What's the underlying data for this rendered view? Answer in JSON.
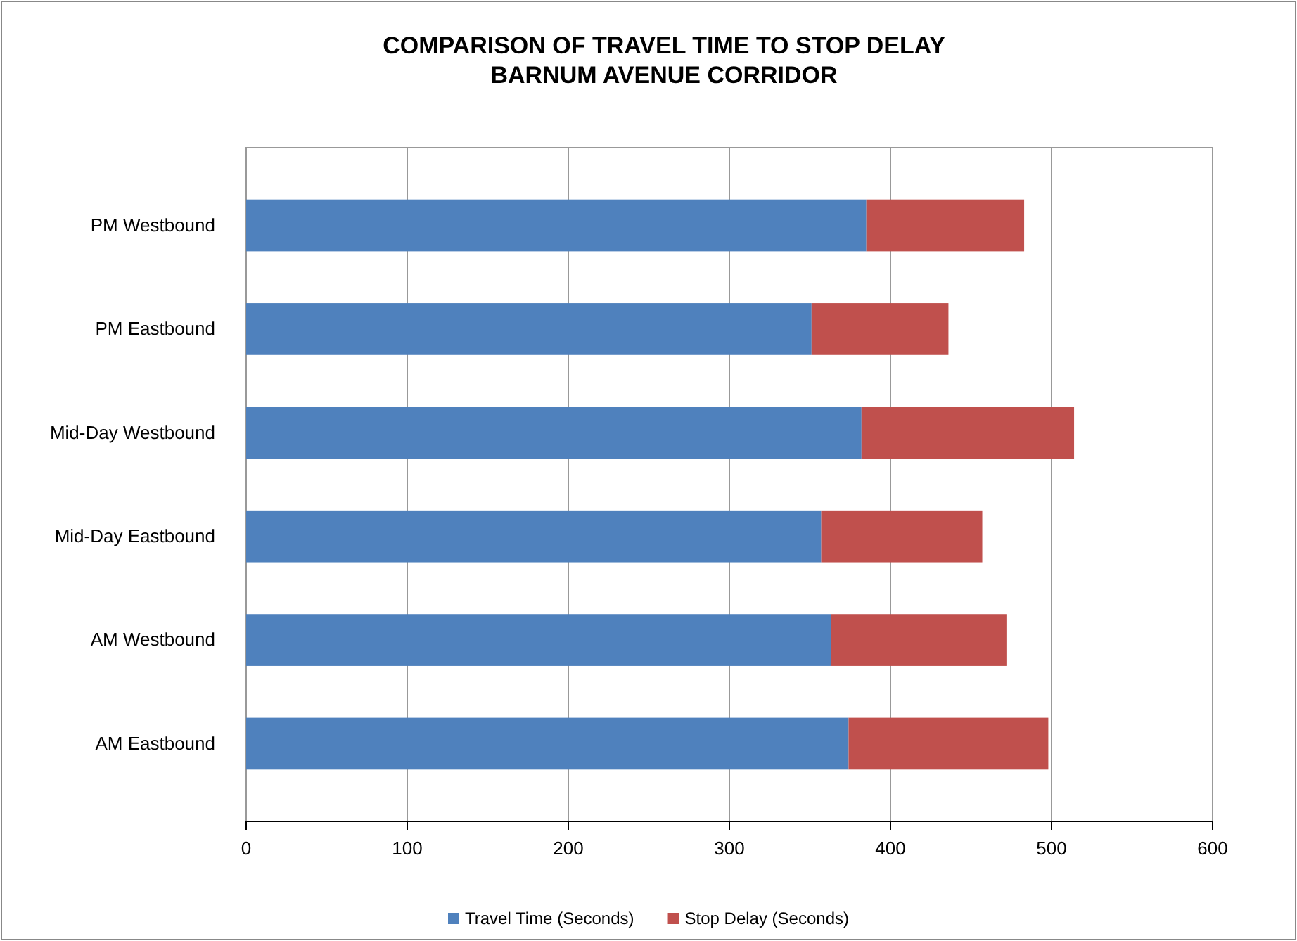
{
  "chart_data": {
    "type": "bar",
    "orientation": "horizontal",
    "stacked": true,
    "title": "COMPARISON OF TRAVEL TIME TO STOP DELAY\nBARNUM AVENUE CORRIDOR",
    "categories": [
      "PM Westbound",
      "PM Eastbound",
      "Mid-Day Westbound",
      "Mid-Day Eastbound",
      "AM Westbound",
      "AM Eastbound"
    ],
    "series": [
      {
        "name": "Travel Time (Seconds)",
        "color": "#4f81bd",
        "values": [
          385,
          351,
          382,
          357,
          363,
          374
        ]
      },
      {
        "name": "Stop Delay (Seconds)",
        "color": "#c0504d",
        "values": [
          98,
          85,
          132,
          100,
          109,
          124
        ]
      }
    ],
    "xlim": [
      0,
      600
    ],
    "xticks": [
      0,
      100,
      200,
      300,
      400,
      500,
      600
    ],
    "grid": "x",
    "legend": "bottom"
  }
}
